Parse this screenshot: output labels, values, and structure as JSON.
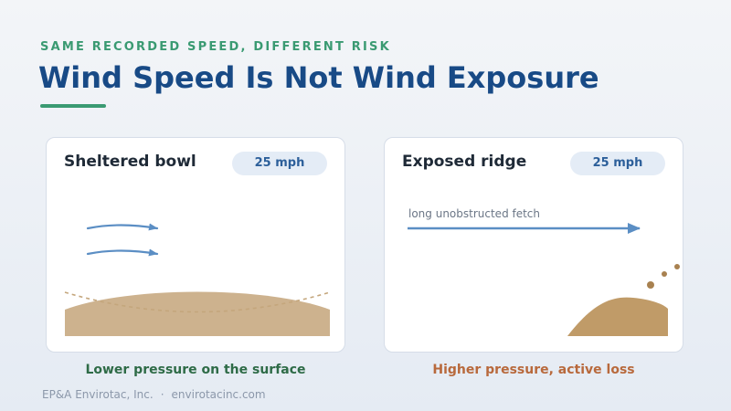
{
  "header": {
    "eyebrow": "SAME RECORDED SPEED, DIFFERENT RISK",
    "title": "Wind Speed Is Not Wind Exposure"
  },
  "cards": [
    {
      "title": "Sheltered bowl",
      "speed": "25 mph",
      "caption": "Lower pressure on the surface"
    },
    {
      "title": "Exposed ridge",
      "speed": "25 mph",
      "annotation": "long unobstructed fetch",
      "caption": "Higher pressure, active loss"
    }
  ],
  "footer": {
    "company": "EP&A Envirotac, Inc.",
    "separator": "·",
    "website": "envirotacinc.com"
  },
  "colors": {
    "accent_green": "#3a9a72",
    "title_blue": "#184a86",
    "wind_arrow": "#5b8ec4",
    "sand_light": "#cdb28e",
    "sand_dark": "#c09b68",
    "particle": "#a88150",
    "caption_green": "#2e6b47",
    "caption_orange": "#b8693c"
  }
}
